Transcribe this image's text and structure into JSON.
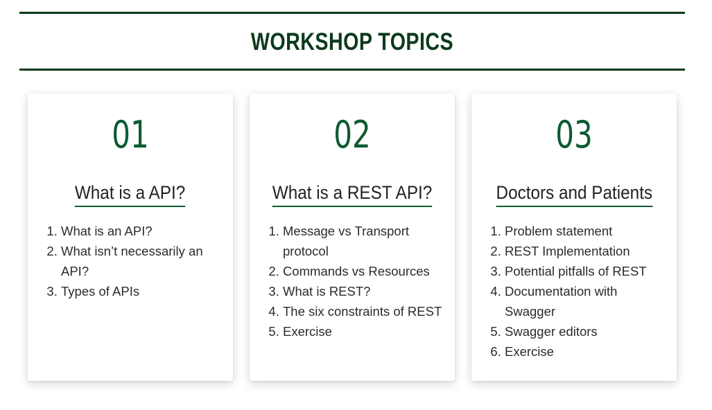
{
  "header": {
    "title": "WORKSHOP TOPICS"
  },
  "cards": [
    {
      "number": "01",
      "heading": "What is a API?",
      "items": [
        "What is an API?",
        "What isn’t necessarily an API?",
        "Types of APIs"
      ]
    },
    {
      "number": "02",
      "heading": "What is a REST API?",
      "items": [
        "Message vs Transport protocol",
        "Commands vs Resources",
        "What is REST?",
        "The six constraints of REST",
        "Exercise"
      ]
    },
    {
      "number": "03",
      "heading": "Doctors and Patients",
      "items": [
        "Problem statement",
        "REST Implementation",
        "Potential pitfalls of REST",
        "Documentation with Swagger",
        "Swagger editors",
        "Exercise"
      ]
    }
  ],
  "colors": {
    "title": "#0c3a1a",
    "accent": "#0e5a32",
    "text": "#2b2b2b"
  }
}
